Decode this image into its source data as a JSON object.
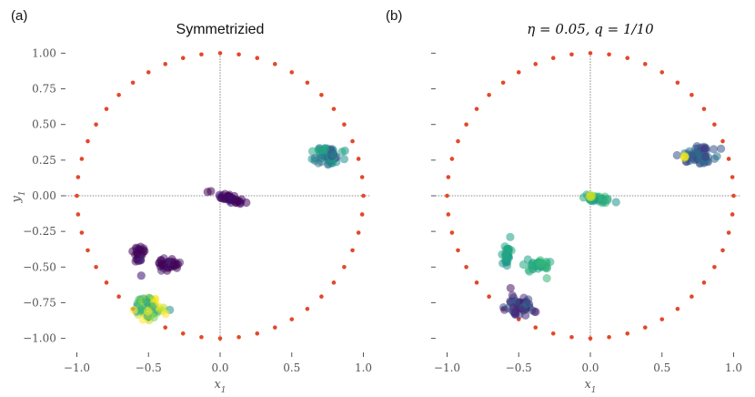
{
  "chart_data": [
    {
      "type": "scatter",
      "panel_label": "(a)",
      "title": "Symmetrizied",
      "xlabel": "x1",
      "ylabel": "y1",
      "xlim": [
        -1.1,
        1.05
      ],
      "ylim": [
        -1.1,
        1.05
      ],
      "xticks": [
        -1.0,
        -0.5,
        0.0,
        0.5,
        1.0
      ],
      "xtick_labels": [
        "−1.0",
        "−0.5",
        "0.0",
        "0.5",
        "1.0"
      ],
      "yticks": [
        1.0,
        0.75,
        0.5,
        0.25,
        0.0,
        -0.25,
        -0.5,
        -0.75,
        -1.0
      ],
      "ytick_labels": [
        "1.00",
        "0.75",
        "0.50",
        "0.25",
        "0.00",
        "−0.25",
        "−0.50",
        "−0.75",
        "−1.00"
      ],
      "show_yticklabels": true,
      "unit_circle": {
        "n_points": 48,
        "radius": 1.0,
        "color": "#e4472b"
      },
      "clusters": [
        {
          "cx": 0.07,
          "cy": -0.02,
          "sx": 0.05,
          "sy": 0.012,
          "angle": -0.25,
          "n": 40,
          "colors": [
            "#440154",
            "#46085c",
            "#3b0f70"
          ]
        },
        {
          "cx": -0.57,
          "cy": -0.42,
          "sx": 0.015,
          "sy": 0.04,
          "angle": 0.0,
          "n": 30,
          "colors": [
            "#440154",
            "#482173",
            "#3b0f70"
          ]
        },
        {
          "cx": -0.36,
          "cy": -0.49,
          "sx": 0.045,
          "sy": 0.025,
          "angle": 0.0,
          "n": 40,
          "colors": [
            "#440154",
            "#482878",
            "#46085c"
          ]
        },
        {
          "cx": 0.75,
          "cy": 0.28,
          "sx": 0.05,
          "sy": 0.03,
          "angle": 0.0,
          "n": 60,
          "colors": [
            "#21918c",
            "#2a788e",
            "#22a884",
            "#3b528b"
          ]
        },
        {
          "cx": -0.5,
          "cy": -0.78,
          "sx": 0.05,
          "sy": 0.04,
          "angle": 0.0,
          "n": 60,
          "colors": [
            "#22a884",
            "#7ad151",
            "#bddf26",
            "#35b779",
            "#fde725",
            "#21918c"
          ]
        }
      ]
    },
    {
      "type": "scatter",
      "panel_label": "(b)",
      "title": "η = 0.05, q = 1/10",
      "xlabel": "x1",
      "ylabel": "",
      "xlim": [
        -1.1,
        1.05
      ],
      "ylim": [
        -1.1,
        1.05
      ],
      "xticks": [
        -1.0,
        -0.5,
        0.0,
        0.5,
        1.0
      ],
      "xtick_labels": [
        "−1.0",
        "−0.5",
        "0.0",
        "0.5",
        "1.0"
      ],
      "yticks": [
        1.0,
        0.75,
        0.5,
        0.25,
        0.0,
        -0.25,
        -0.5,
        -0.75,
        -1.0
      ],
      "ytick_labels": [],
      "show_yticklabels": false,
      "unit_circle": {
        "n_points": 48,
        "radius": 1.0,
        "color": "#e4472b"
      },
      "clusters": [
        {
          "cx": 0.06,
          "cy": -0.02,
          "sx": 0.05,
          "sy": 0.012,
          "angle": -0.2,
          "n": 40,
          "colors": [
            "#22a884",
            "#35b779",
            "#21918c"
          ]
        },
        {
          "cx": 0.0,
          "cy": 0.0,
          "sx": 0.006,
          "sy": 0.004,
          "angle": 0.0,
          "n": 4,
          "colors": [
            "#fde725",
            "#bddf26"
          ]
        },
        {
          "cx": -0.58,
          "cy": -0.42,
          "sx": 0.015,
          "sy": 0.04,
          "angle": 0.0,
          "n": 30,
          "colors": [
            "#21918c",
            "#1f9e89",
            "#22a884"
          ]
        },
        {
          "cx": -0.36,
          "cy": -0.49,
          "sx": 0.045,
          "sy": 0.025,
          "angle": 0.0,
          "n": 40,
          "colors": [
            "#22a884",
            "#35b779",
            "#1f9e89"
          ]
        },
        {
          "cx": 0.76,
          "cy": 0.28,
          "sx": 0.05,
          "sy": 0.03,
          "angle": 0.0,
          "n": 60,
          "colors": [
            "#3b528b",
            "#2c728e",
            "#31688e",
            "#443983"
          ]
        },
        {
          "cx": 0.66,
          "cy": 0.27,
          "sx": 0.005,
          "sy": 0.005,
          "angle": 0.0,
          "n": 3,
          "colors": [
            "#fde725",
            "#dce319"
          ]
        },
        {
          "cx": -0.5,
          "cy": -0.78,
          "sx": 0.05,
          "sy": 0.04,
          "angle": 0.0,
          "n": 60,
          "colors": [
            "#3b528b",
            "#443983",
            "#482878",
            "#481467",
            "#31688e"
          ]
        }
      ]
    }
  ]
}
